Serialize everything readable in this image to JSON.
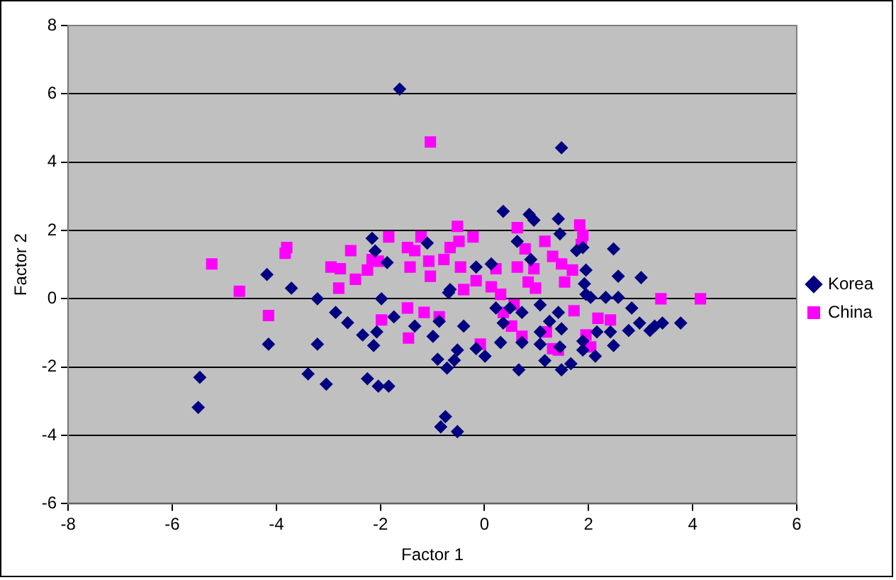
{
  "chart_data": {
    "type": "scatter",
    "xlabel": "Factor 1",
    "ylabel": "Factor 2",
    "xlim": [
      -8,
      6
    ],
    "xticks": [
      -8,
      -6,
      -4,
      -2,
      0,
      2,
      4,
      6
    ],
    "ylim": [
      -6,
      8
    ],
    "yticks": [
      -6,
      -4,
      -2,
      0,
      2,
      4,
      6,
      8
    ],
    "grid": "y",
    "legend": "right",
    "series": [
      {
        "name": "Korea",
        "color": "#000080",
        "marker": "diamond",
        "x": [
          -1.63,
          1.48,
          -5.47,
          -5.5,
          -3.39,
          -3.04,
          -2.25,
          -2.04,
          -1.84,
          -0.75,
          -0.84,
          -0.52,
          -4.18,
          -4.15,
          -3.71,
          -3.21,
          -3.21,
          -2.86,
          -2.63,
          -2.34,
          -2.13,
          -2.16,
          -2.1,
          -1.87,
          -1.98,
          -1.74,
          -2.07,
          -1.34,
          -0.99,
          -0.9,
          -0.72,
          -0.58,
          -1.1,
          -0.69,
          -0.87,
          -0.16,
          -0.52,
          0.31,
          0.36,
          0.86,
          0.95,
          1.42,
          0.89,
          1.89,
          1.95,
          2.48,
          2.57,
          3.01,
          1.92,
          1.95,
          2.33,
          2.57,
          2.83,
          2.98,
          3.18,
          3.42,
          3.77,
          3.27,
          2.77,
          2.42,
          2.16,
          1.89,
          1.48,
          1.25,
          1.07,
          0.72,
          0.66,
          1.48,
          1.16,
          1.45,
          1.89,
          2.48,
          2.13,
          1.42,
          1.07,
          0.49,
          0.36,
          0.22,
          0.72,
          -0.66,
          -0.16,
          0.13,
          0.63,
          1.45,
          1.77,
          2.04,
          -0.4,
          0.01,
          1.66,
          1.07
        ],
        "values": [
          6.14,
          4.42,
          -2.3,
          -3.18,
          -2.2,
          -2.5,
          -2.34,
          -2.56,
          -2.56,
          -3.45,
          -3.75,
          -3.89,
          0.71,
          -1.33,
          0.31,
          -1.33,
          0,
          -0.4,
          -0.7,
          -1.06,
          -1.37,
          1.77,
          1.4,
          1.06,
          0,
          -0.53,
          -0.97,
          -0.8,
          -1.1,
          -1.77,
          -2.03,
          -1.8,
          1.63,
          0.18,
          -0.66,
          -1.46,
          -1.5,
          -1.28,
          2.56,
          2.47,
          2.3,
          2.34,
          1.15,
          1.5,
          0.84,
          1.46,
          0.66,
          0.62,
          0.44,
          0.13,
          0.04,
          0.04,
          -0.27,
          -0.71,
          -0.93,
          -0.71,
          -0.71,
          -0.8,
          -0.93,
          -0.97,
          -0.97,
          -1.24,
          -0.88,
          -0.66,
          -0.97,
          -1.28,
          -2.08,
          -2.08,
          -1.81,
          -1.41,
          -1.5,
          -1.37,
          -1.68,
          -0.4,
          -0.18,
          -0.27,
          -0.71,
          -0.27,
          -0.4,
          0.27,
          0.93,
          1.02,
          1.68,
          1.9,
          1.41,
          0.04,
          -0.8,
          -1.68,
          -1.9,
          -1.33
        ]
      },
      {
        "name": "China",
        "color": "#ff00ff",
        "marker": "square",
        "x": [
          -5.24,
          -4.71,
          -4.15,
          -3.83,
          -3.8,
          -2.95,
          -2.77,
          -2.8,
          -2.48,
          -2.57,
          -2.25,
          -2.16,
          -2.04,
          -1.98,
          -1.84,
          -1.48,
          -1.34,
          -1.43,
          -1.48,
          -1.46,
          -1.04,
          -1.22,
          -1.07,
          -1.04,
          -1.16,
          -0.87,
          -0.78,
          -0.66,
          -0.52,
          -0.49,
          -0.46,
          -0.4,
          -0.22,
          -0.08,
          -0.16,
          0.13,
          0.22,
          0.31,
          0.36,
          0.57,
          0.63,
          0.63,
          0.78,
          0.84,
          0.95,
          1.16,
          0.98,
          1.19,
          1.31,
          1.48,
          1.42,
          1.54,
          1.69,
          1.83,
          1.86,
          1.72,
          1.89,
          2.04,
          2.18,
          2.42,
          1.95,
          1.31,
          3.39,
          4.15,
          0.52,
          0.72
        ],
        "values": [
          1.02,
          0.22,
          -0.49,
          1.33,
          1.5,
          0.93,
          0.88,
          0.31,
          0.57,
          1.41,
          0.84,
          1.15,
          1.1,
          -0.62,
          1.81,
          1.5,
          1.41,
          0.93,
          -0.27,
          -1.15,
          4.59,
          1.81,
          1.1,
          0.66,
          -0.4,
          -0.53,
          1.15,
          1.5,
          2.12,
          1.68,
          0.93,
          0.27,
          1.81,
          -1.33,
          0.53,
          0.35,
          0.88,
          0.13,
          -0.4,
          -0.18,
          0.93,
          2.08,
          1.46,
          0.49,
          0.88,
          1.68,
          0.31,
          -0.97,
          1.24,
          1.02,
          -1.5,
          0.49,
          0.84,
          2.16,
          1.59,
          -0.35,
          1.86,
          -1.41,
          -0.57,
          -0.62,
          -1.06,
          -1.46,
          0,
          0,
          -0.8,
          -1.1
        ]
      }
    ]
  }
}
